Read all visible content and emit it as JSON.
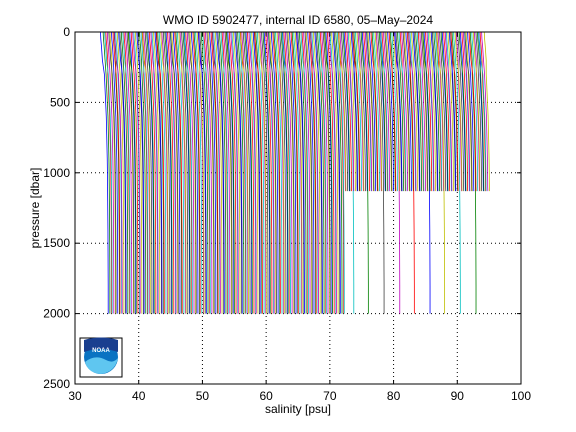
{
  "colors": {
    "background": "#ffffff",
    "axes": "#000000",
    "grid": "#000000",
    "series_cycle": [
      "#0000ff",
      "#008000",
      "#ff0000",
      "#00bfbf",
      "#bf00bf",
      "#bfbf00",
      "#404040"
    ]
  },
  "logo": {
    "text": "NOAA",
    "icon": "noaa-logo-icon"
  },
  "chart_data": {
    "type": "line",
    "title": "WMO ID 5902477, internal ID 6580, 05–May–2024",
    "xlabel": "salinity [psu]",
    "ylabel": "pressure [dbar]",
    "xlim": [
      30,
      100
    ],
    "ylim": [
      0,
      2500
    ],
    "y_reversed": true,
    "grid": true,
    "legend": "none",
    "xticks": [
      30,
      40,
      50,
      60,
      70,
      80,
      90,
      100
    ],
    "yticks": [
      0,
      500,
      1000,
      1500,
      2000,
      2500
    ],
    "xtick_labels": [
      "30",
      "40",
      "50",
      "60",
      "70",
      "80",
      "90",
      "100"
    ],
    "ytick_labels": [
      "0",
      "500",
      "1000",
      "1500",
      "2000",
      "2500"
    ],
    "profile_offset_psu": 0.2,
    "profiles": {
      "count": 300,
      "first_salinity_surface": 34.8,
      "first_salinity_deep": 35.3,
      "profile_shape_pressure": [
        0,
        50,
        100,
        200,
        300,
        400,
        500,
        600,
        700,
        800,
        900,
        1000,
        1100,
        1200,
        1300,
        1400,
        1500,
        1600,
        1700,
        1800,
        1900,
        2000
      ],
      "profile_shape_delta": [
        -0.5,
        -0.45,
        -0.35,
        -0.2,
        -0.1,
        0.0,
        0.1,
        0.2,
        0.25,
        0.3,
        0.35,
        0.38,
        0.4,
        0.42,
        0.44,
        0.46,
        0.47,
        0.48,
        0.49,
        0.5,
        0.5,
        0.5
      ],
      "deep_profile_max_pressure": 2000,
      "shallow_profile_max_pressure": 1130,
      "shallow_region_salinity": [
        72,
        98
      ],
      "deep_in_shallow_region_every": 12
    }
  }
}
